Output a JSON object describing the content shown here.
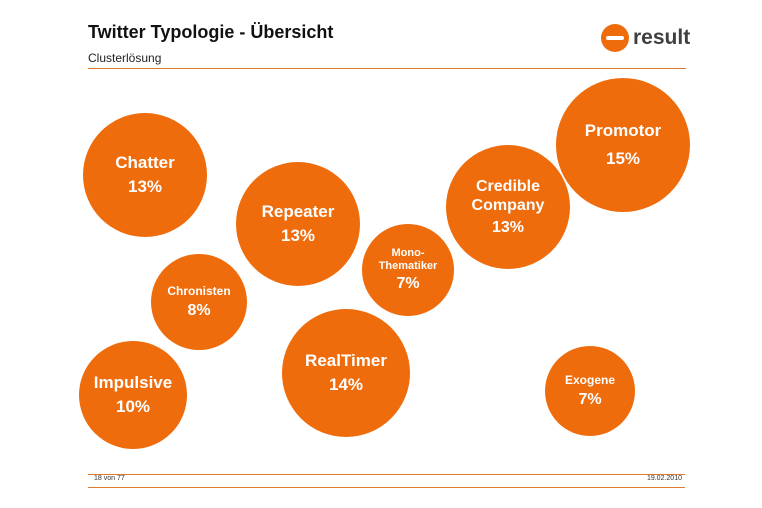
{
  "header": {
    "title": "Twitter Typologie - Übersicht",
    "subtitle": "Clusterlösung",
    "logo_text": "result"
  },
  "bubbles": [
    {
      "label": "Chatter",
      "percent": "13%"
    },
    {
      "label": "Repeater",
      "percent": "13%"
    },
    {
      "label": "Mono-\nThematiker",
      "percent": "7%"
    },
    {
      "label": "Credible\nCompany",
      "percent": "13%"
    },
    {
      "label": "Promotor",
      "percent": "15%"
    },
    {
      "label": "Chronisten",
      "percent": "8%"
    },
    {
      "label": "RealTimer",
      "percent": "14%"
    },
    {
      "label": "Impulsive",
      "percent": "10%"
    },
    {
      "label": "Exogene",
      "percent": "7%"
    }
  ],
  "footer": {
    "page": "18 von 77",
    "date": "19.02.2010"
  },
  "colors": {
    "accent": "#ee6c0c",
    "rule": "#e07a2e"
  }
}
